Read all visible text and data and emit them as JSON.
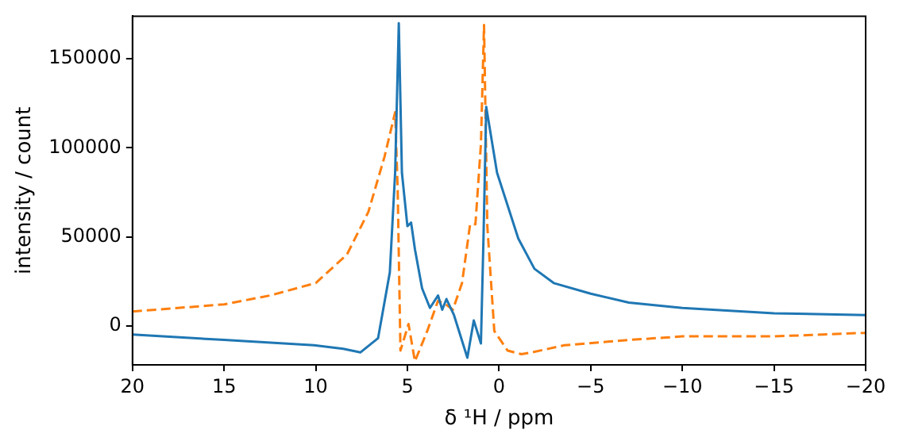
{
  "chart_data": {
    "type": "line",
    "xlabel": "δ ¹H / ppm",
    "ylabel": "intensity / count",
    "xlim": [
      20,
      -20
    ],
    "ylim": [
      -22000,
      174000
    ],
    "xticks": [
      20,
      15,
      10,
      5,
      0,
      {
        "value": -5,
        "label": "−5"
      },
      {
        "value": -10,
        "label": "−10"
      },
      {
        "value": -15,
        "label": "−15"
      },
      {
        "value": -20,
        "label": "−20"
      }
    ],
    "yticks": [
      0,
      50000,
      100000,
      150000
    ],
    "grid": false,
    "legend": false,
    "marker": "none",
    "series": [
      {
        "color": "#1f77b4",
        "line_style": "solid",
        "x": [
          20,
          15,
          10.1,
          8.5,
          7.57,
          6.6,
          5.96,
          5.67,
          5.47,
          5.3,
          5.0,
          4.8,
          4.59,
          4.2,
          3.77,
          3.33,
          3.1,
          2.87,
          2.46,
          1.73,
          1.38,
          0.99,
          0.85,
          0.7,
          0.11,
          -1.05,
          -1.93,
          -2.98,
          -5,
          -7.08,
          -10,
          -15,
          -20
        ],
        "values": [
          -5000,
          -8000,
          -11000,
          -13000,
          -15000,
          -7000,
          30000,
          86000,
          170000,
          86000,
          56000,
          58000,
          43000,
          21000,
          10000,
          17000,
          9000,
          15000,
          6000,
          -18000,
          3000,
          -10000,
          49000,
          123000,
          86000,
          49000,
          32000,
          24000,
          18000,
          13000,
          10000,
          7000,
          6000
        ]
      },
      {
        "color": "#ff7f0e",
        "line_style": "dashed",
        "x": [
          20,
          15,
          12.5,
          10,
          8.3,
          7.13,
          6.25,
          5.67,
          5.53,
          5.38,
          4.94,
          4.59,
          3.92,
          3.33,
          2.9,
          2.52,
          2.02,
          1.58,
          1.29,
          0.99,
          0.82,
          0.64,
          0.26,
          -0.47,
          -1.23,
          -1.78,
          -3.57,
          -7.08,
          -10,
          -15,
          -20
        ],
        "values": [
          8000,
          12000,
          17000,
          24000,
          40000,
          64000,
          95000,
          120000,
          76000,
          -14000,
          1000,
          -20000,
          -3000,
          14000,
          12000,
          9000,
          24000,
          57000,
          57000,
          102000,
          169000,
          56000,
          -3000,
          -14000,
          -16000,
          -15000,
          -11000,
          -8000,
          -6000,
          -6000,
          -4000
        ]
      }
    ]
  }
}
